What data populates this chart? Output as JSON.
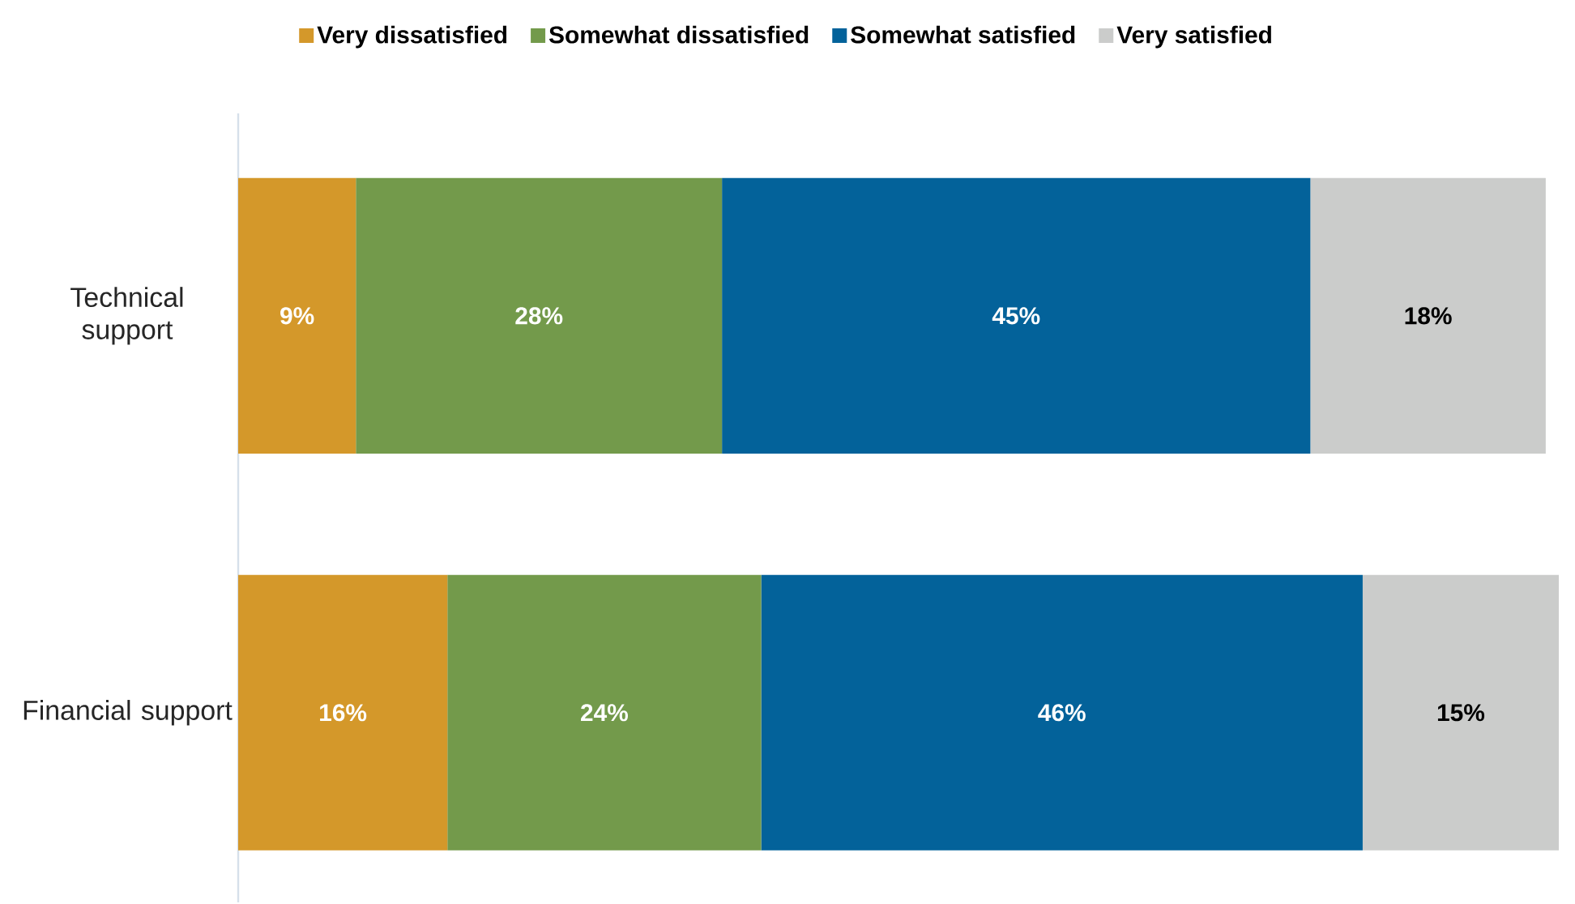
{
  "chart_data": {
    "type": "bar",
    "orientation": "horizontal",
    "stacked": true,
    "legend": "top",
    "categories": [
      "Technical support",
      "Financial support"
    ],
    "series": [
      {
        "name": "Very dissatisfied",
        "color": "#d4982a",
        "values": [
          9,
          16
        ],
        "value_labels": [
          "9%",
          "16%"
        ]
      },
      {
        "name": "Somewhat dissatisfied",
        "color": "#739a4b",
        "values": [
          28,
          24
        ],
        "value_labels": [
          "28%",
          "24%"
        ]
      },
      {
        "name": "Somewhat satisfied",
        "color": "#03629a",
        "values": [
          45,
          46
        ],
        "value_labels": [
          "45%",
          "46%"
        ]
      },
      {
        "name": "Very satisfied",
        "color": "#cbcccb",
        "values": [
          18,
          15
        ],
        "value_labels": [
          "18%",
          "15%"
        ]
      }
    ]
  }
}
